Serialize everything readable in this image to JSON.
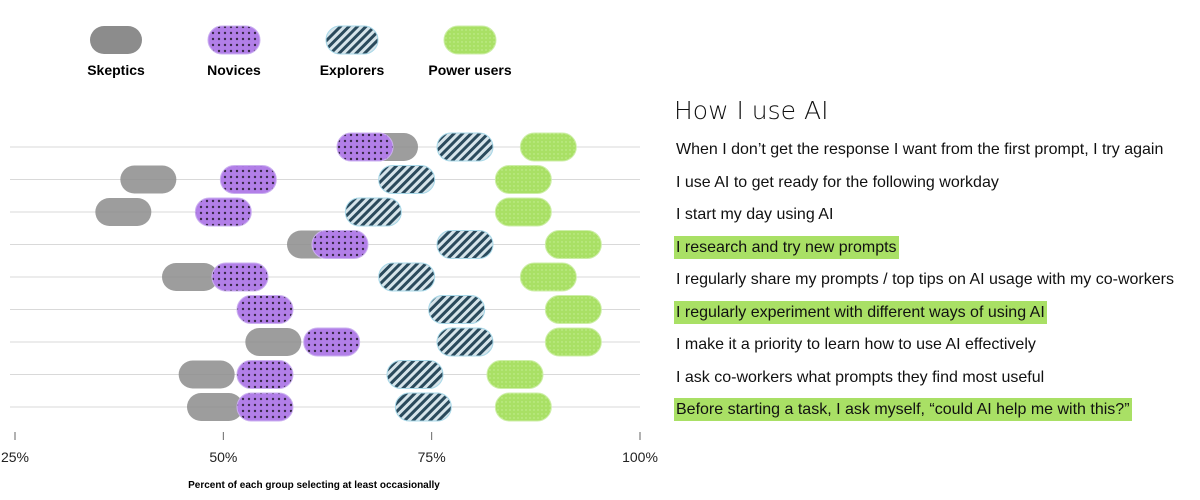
{
  "legend": [
    {
      "name": "Skeptics",
      "color": "#8c8c8c",
      "pattern": "solid"
    },
    {
      "name": "Novices",
      "color": "#b27fe8",
      "pattern": "dots"
    },
    {
      "name": "Explorers",
      "color": "#2a4a5c",
      "pattern": "stripes"
    },
    {
      "name": "Power users",
      "color": "#a9e065",
      "pattern": "dots-light"
    }
  ],
  "panel": {
    "title": "How I use AI",
    "statements": [
      {
        "text": "When I don’t get the response I want from the first prompt, I try again",
        "highlight": false
      },
      {
        "text": "I use AI to get ready for the following workday",
        "highlight": false
      },
      {
        "text": "I start my day using AI",
        "highlight": false
      },
      {
        "text": "I research and try new prompts",
        "highlight": true
      },
      {
        "text": "I regularly share my prompts / top tips on AI usage with my co-workers",
        "highlight": false
      },
      {
        "text": "I regularly experiment with different ways of using AI",
        "highlight": true
      },
      {
        "text": "I make it a priority to learn how to use AI effectively",
        "highlight": false
      },
      {
        "text": "I ask co-workers what prompts they find most useful",
        "highlight": false
      },
      {
        "text": "Before starting a task, I ask myself, “could AI help me with this?”",
        "highlight": true
      }
    ]
  },
  "chart_data": {
    "type": "scatter",
    "title": "How I use AI",
    "xlabel": "Percent of each group selecting at least occasionally",
    "xlim": [
      25,
      100
    ],
    "xticks": [
      25,
      50,
      75,
      100
    ],
    "xtick_labels": [
      "25%",
      "50%",
      "75%",
      "100%"
    ],
    "categories": [
      "When I don’t get the response I want from the first prompt, I try again",
      "I use AI to get ready for the following workday",
      "I start my day using AI",
      "I research and try new prompts",
      "I regularly share my prompts / top tips on AI usage with my co-workers",
      "I regularly experiment with different ways of using AI",
      "I make it a priority to learn how to use AI effectively",
      "I ask co-workers what prompts they find most useful",
      "Before starting a task, I ask myself, “could AI help me with this?”"
    ],
    "series": [
      {
        "name": "Skeptics",
        "values": [
          70,
          41,
          38,
          61,
          46,
          55,
          56,
          48,
          49
        ]
      },
      {
        "name": "Novices",
        "values": [
          67,
          53,
          50,
          64,
          52,
          55,
          63,
          55,
          55
        ]
      },
      {
        "name": "Explorers",
        "values": [
          79,
          72,
          68,
          79,
          72,
          78,
          79,
          73,
          74
        ]
      },
      {
        "name": "Power users",
        "values": [
          89,
          86,
          86,
          92,
          89,
          92,
          92,
          85,
          86
        ]
      }
    ]
  }
}
